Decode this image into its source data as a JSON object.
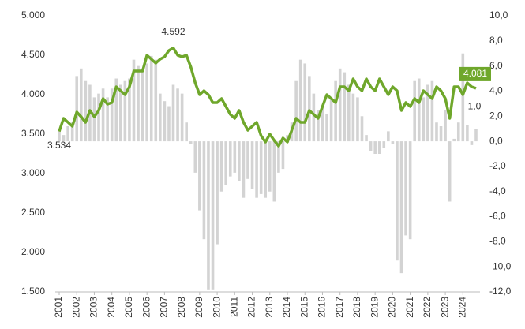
{
  "chart_data": {
    "type": "combo",
    "categories": [
      "2001",
      null,
      null,
      null,
      "2002",
      null,
      null,
      null,
      "2003",
      null,
      null,
      null,
      "2004",
      null,
      null,
      null,
      "2005",
      null,
      null,
      null,
      "2006",
      null,
      null,
      null,
      "2007",
      null,
      null,
      null,
      "2008",
      null,
      null,
      null,
      "2009",
      null,
      null,
      null,
      "2010",
      null,
      null,
      null,
      "2011",
      null,
      null,
      null,
      "2012",
      null,
      null,
      null,
      "2013",
      null,
      null,
      null,
      "2014",
      null,
      null,
      null,
      "2015",
      null,
      null,
      null,
      "2016",
      null,
      null,
      null,
      "2017",
      null,
      null,
      null,
      "2018",
      null,
      null,
      null,
      "2019",
      null,
      null,
      null,
      "2020",
      null,
      null,
      null,
      "2021",
      null,
      null,
      null,
      "2022",
      null,
      null,
      null,
      "2023",
      null,
      null,
      null,
      "2024",
      null,
      null,
      null
    ],
    "series": [
      {
        "type": "bar",
        "axis": "y2",
        "color": "#d3d3d3",
        "values": [
          0.8,
          0.5,
          1.2,
          1.5,
          5.2,
          5.8,
          4.8,
          4.5,
          3.5,
          3.8,
          4.2,
          3.5,
          4.2,
          5.0,
          4.5,
          4.8,
          5.0,
          6.5,
          6.0,
          5.8,
          6.2,
          6.8,
          6.5,
          3.8,
          3.2,
          2.8,
          4.5,
          4.2,
          3.8,
          1.5,
          -0.2,
          -2.5,
          -5.5,
          -7.8,
          -11.8,
          -11.8,
          -8.2,
          -4.0,
          -3.5,
          -2.8,
          -2.5,
          -3.2,
          -4.5,
          -3.0,
          -3.8,
          -4.5,
          -4.2,
          -4.5,
          -4.0,
          -4.8,
          -2.5,
          -2.2,
          0.5,
          1.5,
          4.8,
          6.5,
          6.2,
          5.2,
          3.8,
          2.5,
          2.8,
          2.2,
          3.5,
          4.8,
          5.8,
          5.5,
          4.5,
          3.8,
          3.5,
          2.0,
          0.5,
          -0.8,
          -1.0,
          -1.0,
          -0.5,
          0.8,
          -0.2,
          -9.5,
          -10.5,
          -7.5,
          -7.8,
          4.8,
          5.0,
          3.5,
          4.5,
          4.8,
          1.5,
          1.2,
          2.5,
          -4.8,
          0.2,
          1.5,
          7.0,
          1.3,
          -0.3,
          1.0
        ],
        "value_labels": [
          null,
          null,
          null,
          null,
          null,
          null,
          null,
          null,
          null,
          null,
          null,
          null,
          null,
          null,
          null,
          null,
          null,
          null,
          null,
          null,
          null,
          null,
          null,
          null,
          null,
          null,
          null,
          null,
          null,
          null,
          null,
          null,
          null,
          null,
          null,
          null,
          null,
          null,
          null,
          null,
          null,
          null,
          null,
          null,
          null,
          null,
          null,
          null,
          null,
          null,
          null,
          null,
          null,
          null,
          null,
          null,
          null,
          null,
          null,
          null,
          null,
          null,
          null,
          null,
          null,
          null,
          null,
          null,
          null,
          null,
          null,
          null,
          null,
          null,
          null,
          null,
          null,
          null,
          null,
          null,
          null,
          null,
          null,
          null,
          null,
          null,
          null,
          null,
          null,
          null,
          null,
          null,
          null,
          null,
          null,
          "1,0"
        ]
      },
      {
        "type": "line",
        "axis": "y",
        "color": "#6fa72b",
        "values": [
          3534,
          3700,
          3650,
          3600,
          3780,
          3720,
          3650,
          3800,
          3720,
          3800,
          3950,
          3880,
          3900,
          4100,
          4050,
          4000,
          4100,
          4300,
          4300,
          4300,
          4500,
          4450,
          4400,
          4450,
          4480,
          4560,
          4592,
          4500,
          4480,
          4500,
          4350,
          4150,
          4000,
          4050,
          4000,
          3900,
          3900,
          3950,
          3850,
          3750,
          3700,
          3800,
          3650,
          3550,
          3600,
          3650,
          3480,
          3400,
          3500,
          3420,
          3350,
          3450,
          3400,
          3550,
          3700,
          3650,
          3650,
          3800,
          3750,
          3700,
          3850,
          4000,
          3950,
          3900,
          4100,
          4100,
          4050,
          4200,
          4100,
          4050,
          4200,
          4100,
          4050,
          4200,
          4100,
          4000,
          4100,
          4050,
          3800,
          3900,
          3850,
          3950,
          3900,
          4050,
          4000,
          3950,
          4100,
          4050,
          3950,
          3700,
          4100,
          4100,
          4000,
          4150,
          4100,
          4081
        ],
        "value_labels": [
          "3.534",
          null,
          null,
          null,
          null,
          null,
          null,
          null,
          null,
          null,
          null,
          null,
          null,
          null,
          null,
          null,
          null,
          null,
          null,
          null,
          null,
          null,
          null,
          null,
          null,
          null,
          "4.592",
          null,
          null,
          null,
          null,
          null,
          null,
          null,
          null,
          null,
          null,
          null,
          null,
          null,
          null,
          null,
          null,
          null,
          null,
          null,
          null,
          null,
          null,
          null,
          null,
          null,
          null,
          null,
          null,
          null,
          null,
          null,
          null,
          null,
          null,
          null,
          null,
          null,
          null,
          null,
          null,
          null,
          null,
          null,
          null,
          null,
          null,
          null,
          null,
          null,
          null,
          null,
          null,
          null,
          null,
          null,
          null,
          null,
          null,
          null,
          null,
          null,
          null,
          null,
          null,
          null,
          null,
          null,
          null,
          "4.081"
        ]
      }
    ],
    "ylim": [
      1500,
      5000
    ],
    "yticks": [
      {
        "value": 1500,
        "label": "1.500"
      },
      {
        "value": 2000,
        "label": "2.000"
      },
      {
        "value": 2500,
        "label": "2.500"
      },
      {
        "value": 3000,
        "label": "3.000"
      },
      {
        "value": 3500,
        "label": "3.500"
      },
      {
        "value": 4000,
        "label": "4.000"
      },
      {
        "value": 4500,
        "label": "4.500"
      },
      {
        "value": 5000,
        "label": "5.000"
      }
    ],
    "y2lim": [
      -12,
      10
    ],
    "y2ticks": [
      {
        "value": -12,
        "label": "-12,0"
      },
      {
        "value": -10,
        "label": "-10,0"
      },
      {
        "value": -8,
        "label": "-8,0"
      },
      {
        "value": -6,
        "label": "-6,0"
      },
      {
        "value": -4,
        "label": "-4,0"
      },
      {
        "value": -2,
        "label": "-2,0"
      },
      {
        "value": 0,
        "label": "0,0"
      },
      {
        "value": 2,
        "label": "2,0"
      },
      {
        "value": 4,
        "label": "4,0"
      },
      {
        "value": 6,
        "label": "6,0"
      },
      {
        "value": 8,
        "label": "8,0"
      },
      {
        "value": 10,
        "label": "10,0"
      }
    ],
    "grid": false
  }
}
